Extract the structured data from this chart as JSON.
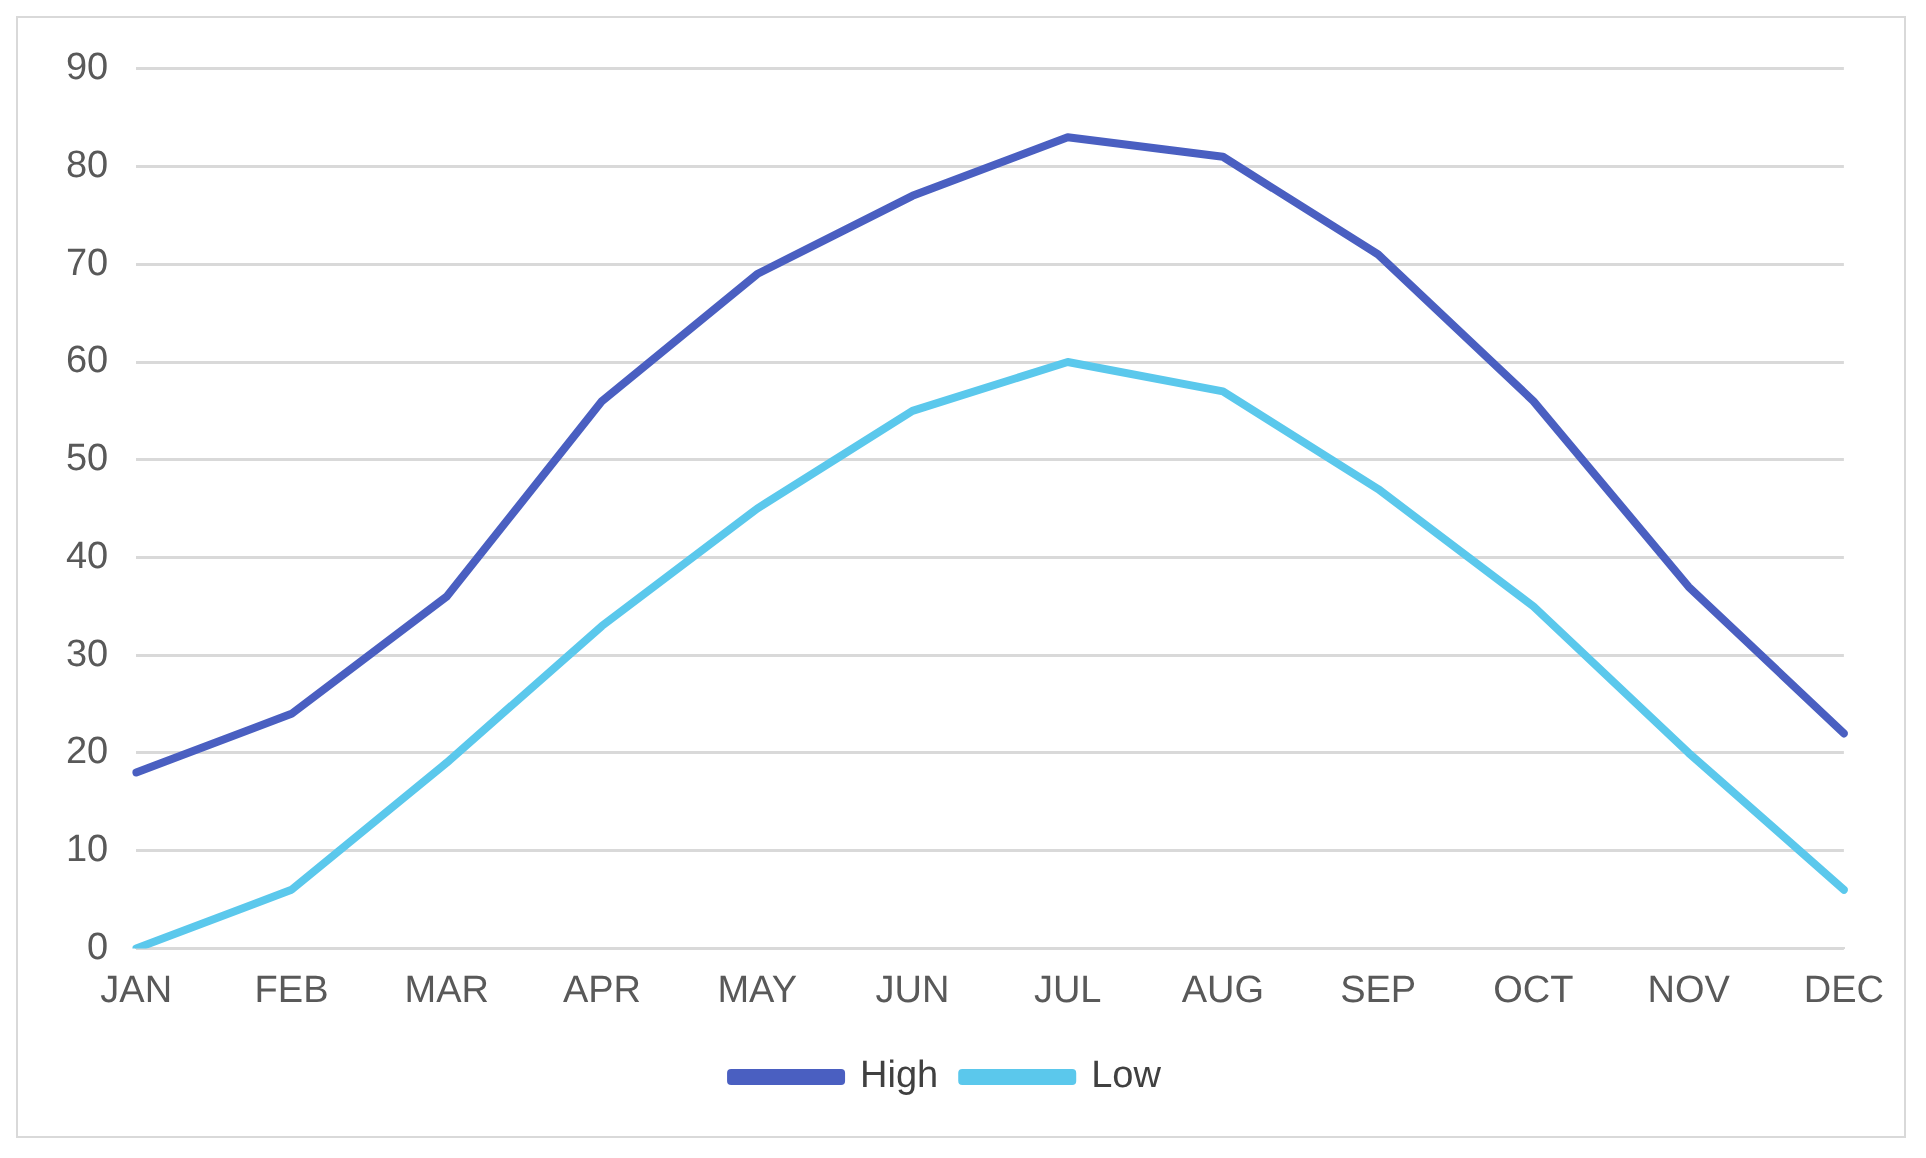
{
  "chart_data": {
    "type": "line",
    "categories": [
      "JAN",
      "FEB",
      "MAR",
      "APR",
      "MAY",
      "JUN",
      "JUL",
      "AUG",
      "SEP",
      "OCT",
      "NOV",
      "DEC"
    ],
    "series": [
      {
        "name": "High",
        "color": "#4a5fc1",
        "values": [
          18,
          24,
          36,
          56,
          69,
          77,
          83,
          81,
          71,
          56,
          37,
          22
        ]
      },
      {
        "name": "Low",
        "color": "#5bc8ec",
        "values": [
          0,
          6,
          19,
          33,
          45,
          55,
          60,
          57,
          47,
          35,
          20,
          6
        ]
      }
    ],
    "ylim": [
      0,
      90
    ],
    "yticks": [
      0,
      10,
      20,
      30,
      40,
      50,
      60,
      70,
      80,
      90
    ],
    "grid": "y",
    "legend": "bottom",
    "marker": "none",
    "line_style": "solid"
  }
}
